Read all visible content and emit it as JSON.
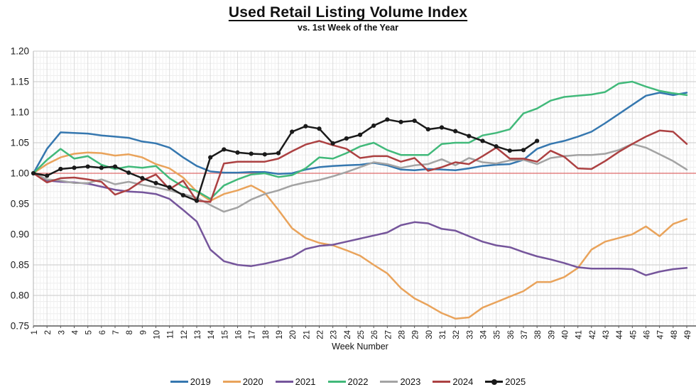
{
  "chart_data": {
    "type": "line",
    "title": "Used Retail Listing Volume Index",
    "subtitle": "vs. 1st Week of the Year",
    "xlabel": "Week Number",
    "ylim": [
      0.75,
      1.2
    ],
    "ytick_step": 0.05,
    "y_tick_labels": [
      "1.20",
      "1.15",
      "1.10",
      "1.05",
      "1.00",
      "0.95",
      "0.90",
      "0.85",
      "0.80",
      "0.75"
    ],
    "grid": true,
    "legend_position": "bottom",
    "reference_line": {
      "value": 1.0,
      "color": "#DE6A6A"
    },
    "x": [
      1,
      2,
      3,
      4,
      5,
      6,
      7,
      8,
      9,
      10,
      11,
      12,
      13,
      14,
      15,
      16,
      17,
      18,
      19,
      20,
      21,
      22,
      23,
      24,
      25,
      26,
      27,
      28,
      29,
      30,
      31,
      32,
      33,
      34,
      35,
      36,
      37,
      38,
      39,
      40,
      41,
      42,
      43,
      44,
      45,
      46,
      47,
      48,
      49
    ],
    "series": [
      {
        "name": "2019",
        "color": "#3577AF",
        "marker": false,
        "values": [
          1.0,
          1.04,
          1.067,
          1.066,
          1.065,
          1.062,
          1.06,
          1.058,
          1.052,
          1.049,
          1.042,
          1.026,
          1.012,
          1.003,
          1.001,
          1.001,
          1.002,
          1.002,
          0.999,
          1.0,
          1.006,
          1.01,
          1.012,
          1.013,
          1.014,
          1.017,
          1.013,
          1.006,
          1.005,
          1.007,
          1.006,
          1.005,
          1.008,
          1.012,
          1.014,
          1.015,
          1.022,
          1.04,
          1.048,
          1.053,
          1.06,
          1.068,
          1.082,
          1.097,
          1.112,
          1.127,
          1.132,
          1.128,
          1.132
        ]
      },
      {
        "name": "2020",
        "color": "#E9A35B",
        "marker": false,
        "values": [
          1.0,
          1.015,
          1.026,
          1.032,
          1.034,
          1.033,
          1.029,
          1.031,
          1.026,
          1.015,
          1.008,
          0.993,
          0.97,
          0.955,
          0.966,
          0.972,
          0.98,
          0.968,
          0.94,
          0.91,
          0.894,
          0.886,
          0.882,
          0.874,
          0.865,
          0.85,
          0.836,
          0.812,
          0.795,
          0.784,
          0.771,
          0.762,
          0.764,
          0.78,
          0.789,
          0.798,
          0.807,
          0.822,
          0.822,
          0.83,
          0.845,
          0.875,
          0.888,
          0.894,
          0.9,
          0.913,
          0.897,
          0.917,
          0.925
        ]
      },
      {
        "name": "2021",
        "color": "#75559B",
        "marker": false,
        "values": [
          1.0,
          0.988,
          0.986,
          0.985,
          0.983,
          0.978,
          0.973,
          0.97,
          0.969,
          0.966,
          0.958,
          0.94,
          0.921,
          0.875,
          0.856,
          0.85,
          0.848,
          0.852,
          0.857,
          0.863,
          0.876,
          0.881,
          0.883,
          0.888,
          0.893,
          0.898,
          0.903,
          0.915,
          0.92,
          0.918,
          0.909,
          0.906,
          0.897,
          0.888,
          0.882,
          0.879,
          0.871,
          0.864,
          0.859,
          0.853,
          0.846,
          0.844,
          0.844,
          0.844,
          0.843,
          0.833,
          0.839,
          0.843,
          0.845
        ]
      },
      {
        "name": "2022",
        "color": "#41B97A",
        "marker": false,
        "values": [
          1.0,
          1.022,
          1.04,
          1.024,
          1.028,
          1.014,
          1.007,
          1.011,
          1.009,
          1.012,
          0.992,
          0.978,
          0.971,
          0.958,
          0.98,
          0.99,
          0.998,
          1.0,
          0.994,
          0.997,
          1.008,
          1.026,
          1.024,
          1.033,
          1.044,
          1.05,
          1.038,
          1.03,
          1.03,
          1.03,
          1.048,
          1.05,
          1.05,
          1.062,
          1.066,
          1.072,
          1.098,
          1.106,
          1.119,
          1.125,
          1.127,
          1.129,
          1.133,
          1.147,
          1.15,
          1.142,
          1.135,
          1.131,
          1.128
        ]
      },
      {
        "name": "2023",
        "color": "#A3A3A3",
        "marker": false,
        "values": [
          1.0,
          0.99,
          0.988,
          0.984,
          0.984,
          0.99,
          0.982,
          0.986,
          0.981,
          0.977,
          0.972,
          0.966,
          0.96,
          0.948,
          0.937,
          0.944,
          0.957,
          0.966,
          0.972,
          0.98,
          0.985,
          0.989,
          0.995,
          1.002,
          1.01,
          1.018,
          1.015,
          1.009,
          1.013,
          1.015,
          1.023,
          1.013,
          1.025,
          1.018,
          1.016,
          1.021,
          1.022,
          1.015,
          1.025,
          1.028,
          1.03,
          1.03,
          1.032,
          1.038,
          1.048,
          1.042,
          1.031,
          1.02,
          1.006
        ]
      },
      {
        "name": "2024",
        "color": "#AC4142",
        "marker": false,
        "values": [
          1.0,
          0.985,
          0.992,
          0.993,
          0.99,
          0.986,
          0.965,
          0.973,
          0.988,
          0.998,
          0.974,
          0.988,
          0.955,
          0.953,
          1.016,
          1.019,
          1.019,
          1.019,
          1.024,
          1.036,
          1.047,
          1.053,
          1.046,
          1.04,
          1.025,
          1.028,
          1.028,
          1.019,
          1.025,
          1.004,
          1.01,
          1.018,
          1.015,
          1.028,
          1.042,
          1.024,
          1.024,
          1.019,
          1.037,
          1.027,
          1.008,
          1.007,
          1.02,
          1.035,
          1.048,
          1.06,
          1.07,
          1.068,
          1.048
        ]
      },
      {
        "name": "2025",
        "color": "#1A1A1A",
        "marker": true,
        "values": [
          1.0,
          0.996,
          1.007,
          1.009,
          1.011,
          1.009,
          1.011,
          1.001,
          0.992,
          0.984,
          0.977,
          0.964,
          0.955,
          1.026,
          1.039,
          1.034,
          1.032,
          1.031,
          1.033,
          1.068,
          1.077,
          1.073,
          1.049,
          1.057,
          1.063,
          1.078,
          1.088,
          1.084,
          1.086,
          1.072,
          1.075,
          1.069,
          1.061,
          1.053,
          1.044,
          1.037,
          1.038,
          1.053
        ]
      }
    ]
  }
}
